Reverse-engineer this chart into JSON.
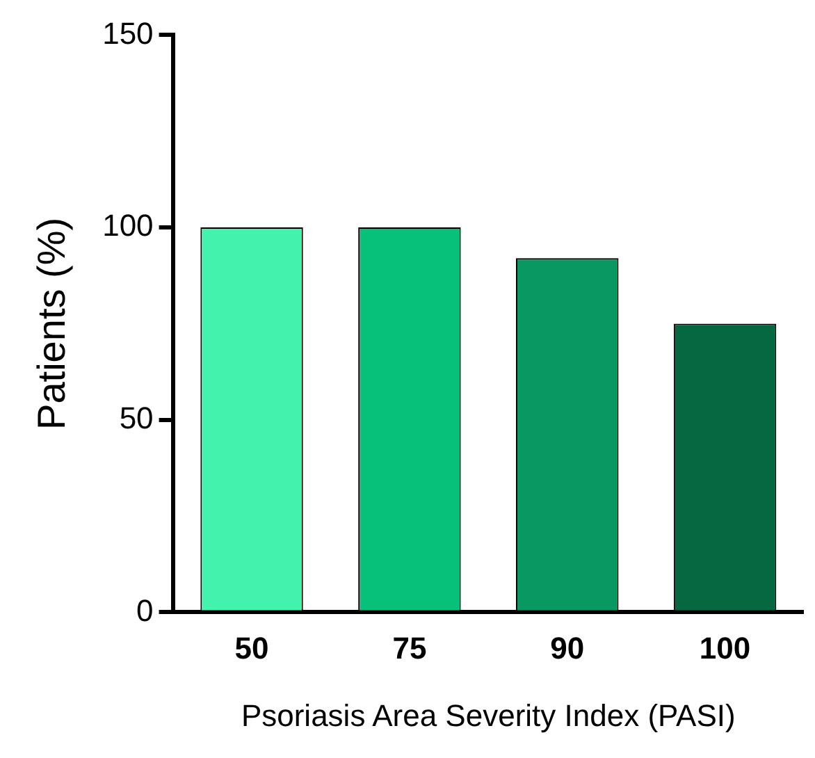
{
  "chart_data": {
    "type": "bar",
    "xlabel": "Psoriasis Area Severity Index (PASI)",
    "ylabel": "Patients (%)",
    "categories": [
      "50",
      "75",
      "90",
      "100"
    ],
    "values": [
      100,
      100,
      92,
      75
    ],
    "colors": [
      "#42f2ad",
      "#07c17a",
      "#0a9862",
      "#066841"
    ],
    "ylim": [
      0,
      150
    ],
    "yticks": [
      0,
      50,
      100,
      150
    ],
    "grid": false,
    "legend": false
  }
}
